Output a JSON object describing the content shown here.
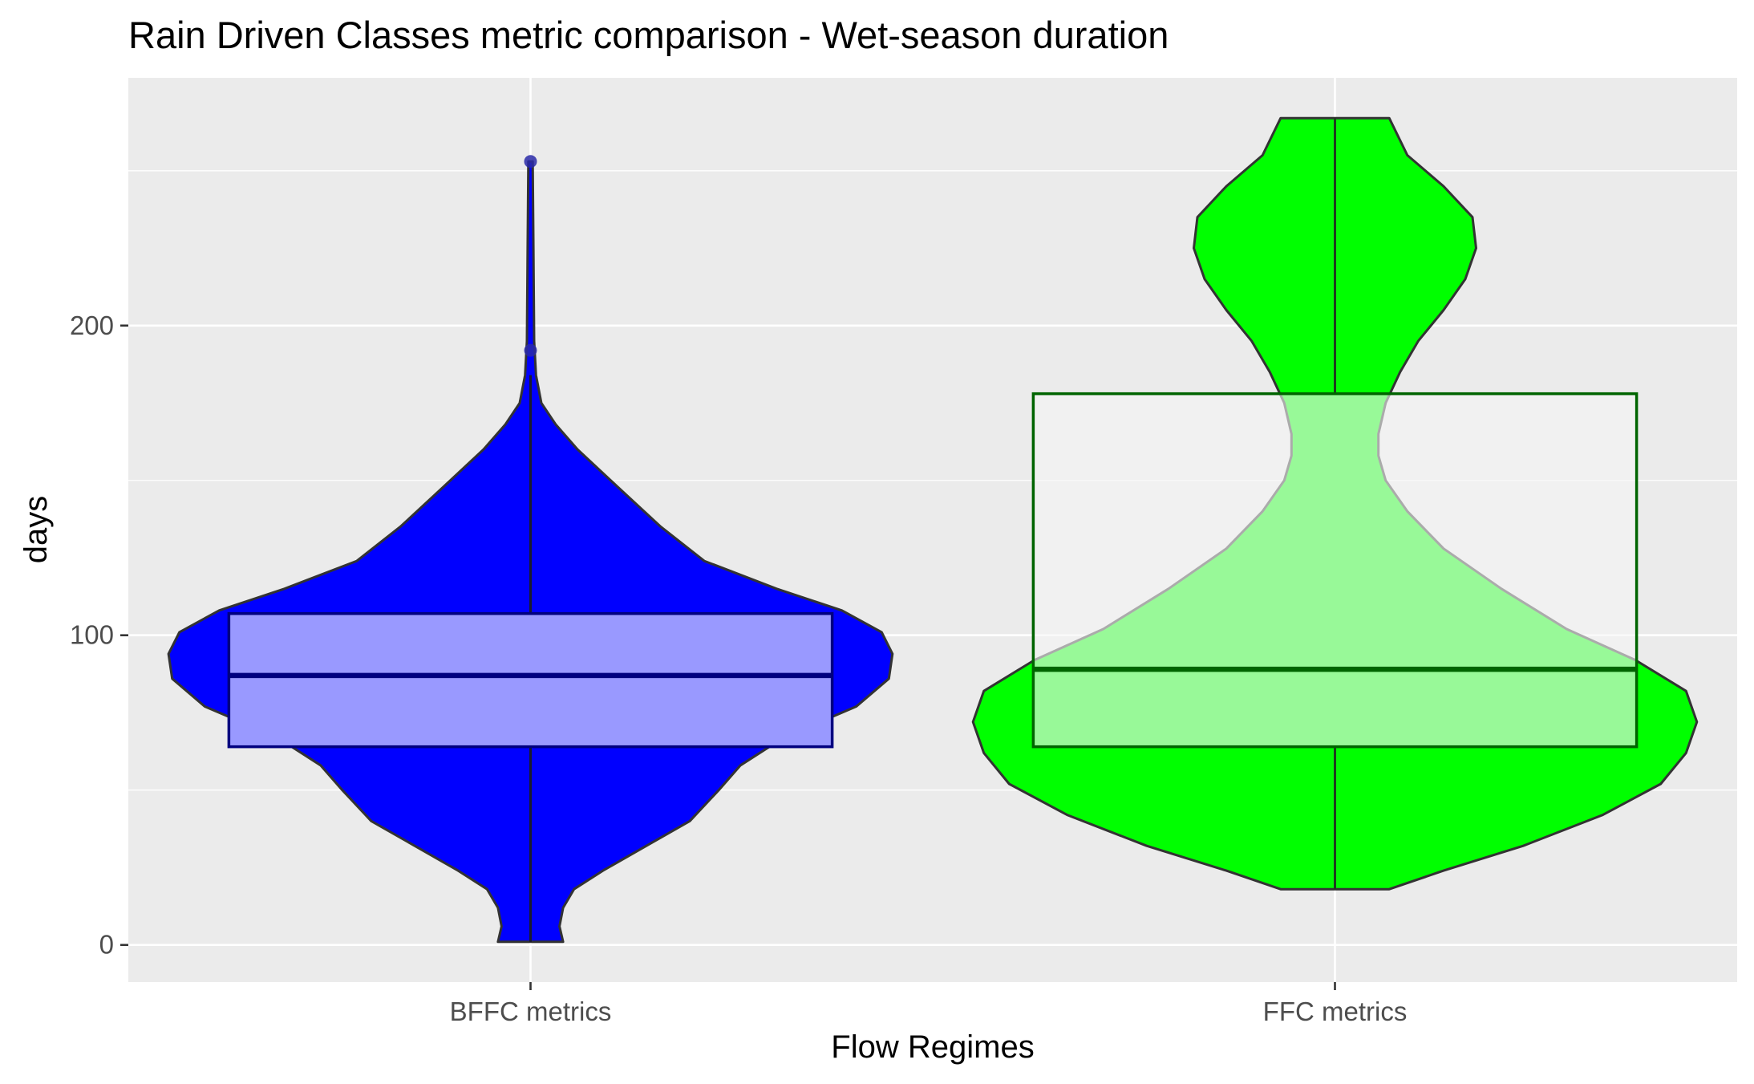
{
  "chart_data": {
    "type": "violin",
    "title": "Rain Driven Classes metric comparison - Wet-season duration",
    "xlabel": "Flow Regimes",
    "ylabel": "days",
    "categories": [
      "BFFC metrics",
      "FFC metrics"
    ],
    "ylim": [
      -12,
      280
    ],
    "yticks": [
      0,
      100,
      200
    ],
    "grid": true,
    "legend": "none",
    "colors": {
      "panel": "#ebebeb",
      "grid": "#ffffff",
      "bffc_fill": "#0000ff",
      "bffc_box_fill": "#9999ff",
      "bffc_box_line": "#00007f",
      "ffc_fill": "#00ff00",
      "ffc_box_fill": "#f5f5f5",
      "ffc_box_line": "#006400",
      "outline": "#333333",
      "outlier": "#2a2aa8"
    },
    "series": [
      {
        "name": "BFFC metrics",
        "box": {
          "q1": 64,
          "median": 87,
          "q3": 107
        },
        "whiskers": [
          1,
          184
        ],
        "outliers": [
          192,
          253
        ],
        "range": [
          1,
          253
        ],
        "density_width": [
          [
            1,
            0.09
          ],
          [
            6,
            0.08
          ],
          [
            12,
            0.09
          ],
          [
            18,
            0.12
          ],
          [
            24,
            0.2
          ],
          [
            32,
            0.32
          ],
          [
            40,
            0.44
          ],
          [
            50,
            0.52
          ],
          [
            58,
            0.58
          ],
          [
            67,
            0.7
          ],
          [
            77,
            0.9
          ],
          [
            86,
            0.99
          ],
          [
            94,
            1.0
          ],
          [
            101,
            0.97
          ],
          [
            108,
            0.86
          ],
          [
            115,
            0.68
          ],
          [
            124,
            0.48
          ],
          [
            135,
            0.36
          ],
          [
            148,
            0.24
          ],
          [
            160,
            0.13
          ],
          [
            168,
            0.07
          ],
          [
            175,
            0.03
          ],
          [
            184,
            0.015
          ],
          [
            195,
            0.01
          ],
          [
            225,
            0.008
          ],
          [
            253,
            0.006
          ]
        ]
      },
      {
        "name": "FFC metrics",
        "box": {
          "q1": 64,
          "median": 89,
          "q3": 178
        },
        "whiskers": [
          18,
          267
        ],
        "outliers": [],
        "range": [
          18,
          267
        ],
        "density_width": [
          [
            18,
            0.15
          ],
          [
            24,
            0.3
          ],
          [
            32,
            0.52
          ],
          [
            42,
            0.74
          ],
          [
            52,
            0.9
          ],
          [
            62,
            0.97
          ],
          [
            72,
            1.0
          ],
          [
            82,
            0.97
          ],
          [
            92,
            0.83
          ],
          [
            102,
            0.64
          ],
          [
            115,
            0.46
          ],
          [
            128,
            0.3
          ],
          [
            140,
            0.2
          ],
          [
            150,
            0.14
          ],
          [
            158,
            0.12
          ],
          [
            165,
            0.12
          ],
          [
            175,
            0.14
          ],
          [
            185,
            0.18
          ],
          [
            195,
            0.23
          ],
          [
            205,
            0.3
          ],
          [
            215,
            0.36
          ],
          [
            225,
            0.39
          ],
          [
            235,
            0.38
          ],
          [
            245,
            0.3
          ],
          [
            255,
            0.2
          ],
          [
            267,
            0.15
          ]
        ]
      }
    ]
  }
}
